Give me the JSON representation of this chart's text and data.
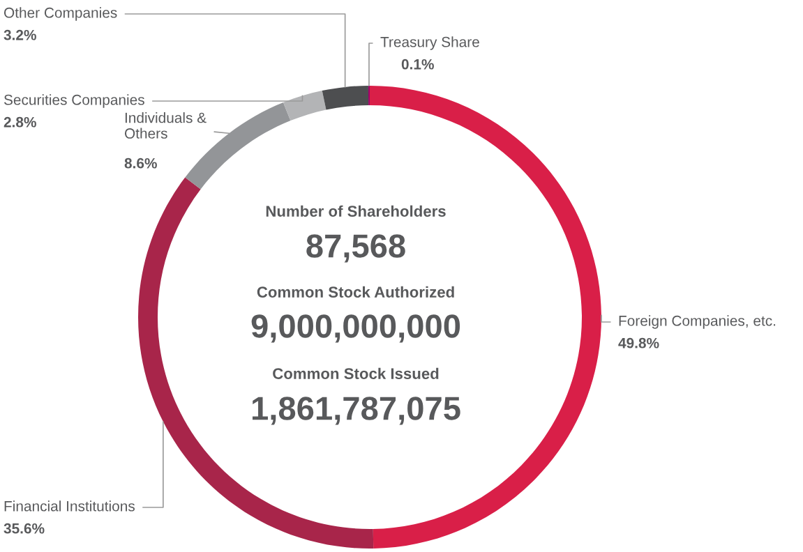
{
  "chart_data": {
    "type": "donut",
    "categories": [
      "Foreign Companies, etc.",
      "Financial Institutions",
      "Individuals &\nOthers",
      "Securities Companies",
      "Other Companies",
      "Treasury Share"
    ],
    "values": [
      49.8,
      35.6,
      8.6,
      2.8,
      3.2,
      0.1
    ],
    "value_labels": [
      "49.8%",
      "35.6%",
      "8.6%",
      "2.8%",
      "3.2%",
      "0.1%"
    ],
    "colors": [
      "#d91f48",
      "#a8254a",
      "#939598",
      "#b3b4b6",
      "#4d4e50",
      "#a0006a"
    ],
    "annotations": [
      "Number of Shareholders",
      "87,568",
      "Common Stock Authorized",
      "9,000,000,000",
      "Common Stock Issued",
      "1,861,787,075"
    ]
  }
}
